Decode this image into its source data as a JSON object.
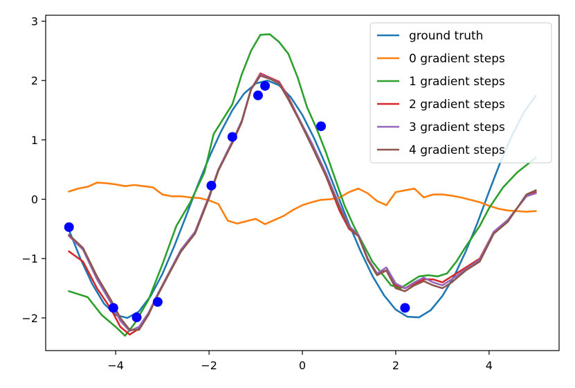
{
  "chart_data": {
    "type": "line",
    "title": "",
    "xlabel": "",
    "ylabel": "",
    "xlim": [
      -5.5,
      5.5
    ],
    "ylim": [
      -2.55,
      3.1
    ],
    "xticks": [
      -4,
      -2,
      0,
      2,
      4
    ],
    "xtick_labels": [
      "−4",
      "−2",
      "0",
      "2",
      "4"
    ],
    "yticks": [
      -2,
      -1,
      0,
      1,
      2,
      3
    ],
    "ytick_labels": [
      "−2",
      "−1",
      "0",
      "1",
      "2",
      "3"
    ],
    "grid": false,
    "legend_position": "top-right",
    "series": [
      {
        "name": "ground truth",
        "color": "#1f77b4",
        "x": [
          -5.0,
          -4.75,
          -4.5,
          -4.25,
          -4.0,
          -3.75,
          -3.5,
          -3.25,
          -3.0,
          -2.75,
          -2.5,
          -2.25,
          -2.0,
          -1.75,
          -1.5,
          -1.25,
          -1.0,
          -0.75,
          -0.5,
          -0.25,
          0.0,
          0.25,
          0.5,
          0.75,
          1.0,
          1.25,
          1.5,
          1.75,
          2.0,
          2.25,
          2.5,
          2.75,
          3.0,
          3.25,
          3.5,
          3.75,
          4.0,
          4.25,
          4.5,
          4.75,
          5.0
        ],
        "y": [
          -0.52,
          -1.01,
          -1.43,
          -1.76,
          -1.95,
          -2.0,
          -1.89,
          -1.63,
          -1.26,
          -0.8,
          -0.3,
          0.22,
          0.7,
          1.13,
          1.5,
          1.78,
          1.95,
          2.0,
          1.92,
          1.72,
          1.42,
          1.03,
          0.58,
          0.08,
          -0.42,
          -0.88,
          -1.29,
          -1.62,
          -1.86,
          -1.98,
          -1.99,
          -1.87,
          -1.63,
          -1.3,
          -0.88,
          -0.4,
          0.13,
          0.64,
          1.09,
          1.47,
          1.74
        ]
      },
      {
        "name": "0 gradient steps",
        "color": "#ff7f0e",
        "x": [
          -5.0,
          -4.8,
          -4.6,
          -4.4,
          -4.2,
          -4.0,
          -3.8,
          -3.6,
          -3.4,
          -3.2,
          -3.0,
          -2.8,
          -2.6,
          -2.4,
          -2.2,
          -2.0,
          -1.8,
          -1.6,
          -1.4,
          -1.2,
          -1.0,
          -0.8,
          -0.6,
          -0.4,
          -0.2,
          0.0,
          0.2,
          0.4,
          0.6,
          0.8,
          1.0,
          1.2,
          1.4,
          1.6,
          1.8,
          2.0,
          2.2,
          2.4,
          2.6,
          2.8,
          3.0,
          3.2,
          3.4,
          3.6,
          3.8,
          4.0,
          4.2,
          4.4,
          4.6,
          4.8,
          5.0
        ],
        "y": [
          0.13,
          0.18,
          0.21,
          0.28,
          0.27,
          0.25,
          0.22,
          0.24,
          0.22,
          0.2,
          0.08,
          0.05,
          0.05,
          0.03,
          0.02,
          -0.02,
          -0.08,
          -0.36,
          -0.41,
          -0.37,
          -0.33,
          -0.42,
          -0.35,
          -0.28,
          -0.18,
          -0.1,
          -0.05,
          -0.01,
          0.0,
          0.03,
          0.12,
          0.18,
          0.1,
          -0.03,
          -0.1,
          0.12,
          0.15,
          0.18,
          0.03,
          0.08,
          0.08,
          0.06,
          0.03,
          -0.01,
          -0.05,
          -0.11,
          -0.16,
          -0.19,
          -0.2,
          -0.21,
          -0.2
        ]
      },
      {
        "name": "1 gradient steps",
        "color": "#2ca02c",
        "x": [
          -5.0,
          -4.6,
          -4.3,
          -4.0,
          -3.8,
          -3.6,
          -3.3,
          -3.0,
          -2.7,
          -2.4,
          -2.1,
          -1.9,
          -1.7,
          -1.5,
          -1.3,
          -1.1,
          -0.9,
          -0.7,
          -0.5,
          -0.3,
          -0.1,
          0.1,
          0.3,
          0.5,
          0.7,
          0.9,
          1.1,
          1.3,
          1.5,
          1.7,
          1.9,
          2.1,
          2.3,
          2.5,
          2.7,
          2.9,
          3.1,
          3.3,
          3.5,
          3.8,
          4.0,
          4.3,
          4.6,
          5.0
        ],
        "y": [
          -1.55,
          -1.65,
          -1.95,
          -2.15,
          -2.3,
          -2.1,
          -1.7,
          -1.1,
          -0.45,
          -0.05,
          0.45,
          1.1,
          1.35,
          1.6,
          2.1,
          2.5,
          2.77,
          2.78,
          2.65,
          2.45,
          2.05,
          1.55,
          1.2,
          0.8,
          0.35,
          -0.1,
          -0.45,
          -0.75,
          -1.05,
          -1.25,
          -1.45,
          -1.5,
          -1.4,
          -1.3,
          -1.28,
          -1.3,
          -1.25,
          -1.05,
          -0.8,
          -0.45,
          -0.15,
          0.2,
          0.45,
          0.7
        ]
      },
      {
        "name": "2 gradient steps",
        "color": "#d62728",
        "x": [
          -5.0,
          -4.7,
          -4.4,
          -4.1,
          -3.9,
          -3.7,
          -3.5,
          -3.3,
          -3.1,
          -2.9,
          -2.6,
          -2.3,
          -2.0,
          -1.8,
          -1.5,
          -1.3,
          -1.1,
          -0.9,
          -0.7,
          -0.5,
          -0.3,
          -0.1,
          0.2,
          0.5,
          0.8,
          1.0,
          1.2,
          1.4,
          1.6,
          1.8,
          2.0,
          2.2,
          2.4,
          2.6,
          2.8,
          3.0,
          3.2,
          3.5,
          3.8,
          4.1,
          4.4,
          4.8,
          5.0
        ],
        "y": [
          -0.88,
          -1.05,
          -1.5,
          -1.85,
          -2.15,
          -2.28,
          -2.18,
          -1.95,
          -1.6,
          -1.3,
          -0.85,
          -0.55,
          0.05,
          0.5,
          0.95,
          1.3,
          1.85,
          2.12,
          2.05,
          1.98,
          1.72,
          1.4,
          0.9,
          0.4,
          -0.2,
          -0.5,
          -0.62,
          -1.0,
          -1.25,
          -1.2,
          -1.45,
          -1.5,
          -1.42,
          -1.35,
          -1.35,
          -1.4,
          -1.3,
          -1.15,
          -1.0,
          -0.55,
          -0.35,
          0.05,
          0.12
        ]
      },
      {
        "name": "3 gradient steps",
        "color": "#9467bd",
        "x": [
          -5.0,
          -4.7,
          -4.4,
          -4.1,
          -3.9,
          -3.7,
          -3.5,
          -3.3,
          -3.1,
          -2.9,
          -2.6,
          -2.3,
          -2.0,
          -1.8,
          -1.5,
          -1.3,
          -1.1,
          -0.9,
          -0.7,
          -0.5,
          -0.3,
          -0.1,
          0.2,
          0.5,
          0.8,
          1.0,
          1.2,
          1.4,
          1.6,
          1.8,
          2.0,
          2.2,
          2.4,
          2.6,
          2.8,
          3.0,
          3.2,
          3.5,
          3.8,
          4.1,
          4.4,
          4.8,
          5.0
        ],
        "y": [
          -0.62,
          -0.85,
          -1.35,
          -1.75,
          -2.05,
          -2.22,
          -2.15,
          -1.92,
          -1.6,
          -1.3,
          -0.85,
          -0.55,
          0.05,
          0.5,
          0.98,
          1.32,
          1.86,
          2.1,
          2.04,
          1.96,
          1.7,
          1.4,
          0.95,
          0.45,
          -0.12,
          -0.45,
          -0.6,
          -1.0,
          -1.25,
          -1.15,
          -1.42,
          -1.5,
          -1.4,
          -1.32,
          -1.4,
          -1.45,
          -1.35,
          -1.18,
          -1.02,
          -0.55,
          -0.35,
          0.05,
          0.1
        ]
      },
      {
        "name": "4 gradient steps",
        "color": "#8c564b",
        "x": [
          -5.0,
          -4.7,
          -4.4,
          -4.1,
          -3.9,
          -3.7,
          -3.5,
          -3.3,
          -3.1,
          -2.9,
          -2.6,
          -2.3,
          -2.0,
          -1.8,
          -1.5,
          -1.3,
          -1.1,
          -0.9,
          -0.7,
          -0.5,
          -0.3,
          -0.1,
          0.2,
          0.5,
          0.8,
          1.0,
          1.2,
          1.4,
          1.6,
          1.8,
          2.0,
          2.2,
          2.4,
          2.6,
          2.8,
          3.0,
          3.2,
          3.5,
          3.8,
          4.1,
          4.4,
          4.8,
          5.0
        ],
        "y": [
          -0.6,
          -0.82,
          -1.3,
          -1.7,
          -2.0,
          -2.2,
          -2.2,
          -1.95,
          -1.62,
          -1.32,
          -0.88,
          -0.58,
          0.02,
          0.48,
          0.95,
          1.3,
          1.85,
          2.08,
          2.03,
          1.95,
          1.68,
          1.38,
          0.9,
          0.4,
          -0.15,
          -0.48,
          -0.62,
          -1.02,
          -1.28,
          -1.2,
          -1.5,
          -1.55,
          -1.45,
          -1.38,
          -1.45,
          -1.5,
          -1.4,
          -1.2,
          -1.05,
          -0.58,
          -0.38,
          0.08,
          0.15
        ]
      }
    ],
    "points": {
      "color": "#0000ff",
      "x": [
        -5.0,
        -4.05,
        -3.55,
        -3.1,
        -1.95,
        -1.5,
        -0.95,
        -0.8,
        0.4,
        2.2
      ],
      "y": [
        -0.47,
        -1.83,
        -1.99,
        -1.73,
        0.23,
        1.05,
        1.75,
        1.91,
        1.23,
        -1.83
      ]
    }
  }
}
